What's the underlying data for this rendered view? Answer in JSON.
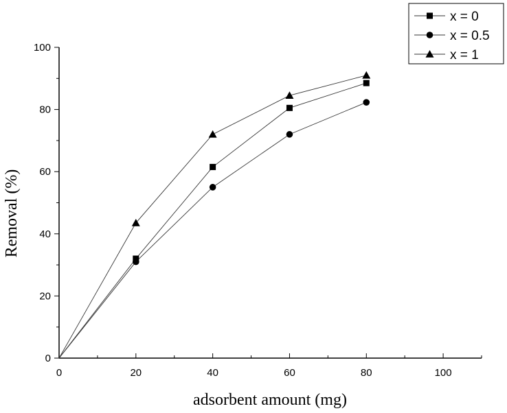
{
  "chart_data": {
    "type": "line",
    "title": "",
    "xlabel": "adsorbent amount (mg)",
    "ylabel": "Removal (%)",
    "xlim": [
      0,
      110
    ],
    "ylim": [
      0,
      100
    ],
    "x_ticks": [
      0,
      20,
      40,
      60,
      80,
      100
    ],
    "y_ticks": [
      0,
      20,
      40,
      60,
      80,
      100
    ],
    "x_tick_labels": [
      "0",
      "20",
      "40",
      "60",
      "80",
      "100"
    ],
    "y_tick_labels": [
      "0",
      "20",
      "40",
      "60",
      "80",
      "100"
    ],
    "grid": false,
    "legend_position": "top-right outside",
    "series": [
      {
        "name": "x = 0",
        "marker": "square",
        "x": [
          0,
          20,
          40,
          60,
          80
        ],
        "values": [
          0,
          32,
          61.5,
          80.5,
          88.5
        ]
      },
      {
        "name": "x = 0.5",
        "marker": "circle",
        "x": [
          0,
          20,
          40,
          60,
          80
        ],
        "values": [
          0,
          31,
          55,
          72,
          82.3
        ]
      },
      {
        "name": "x = 1",
        "marker": "triangle",
        "x": [
          0,
          20,
          40,
          60,
          80
        ],
        "values": [
          0,
          43.5,
          72,
          84.5,
          91
        ]
      }
    ]
  }
}
